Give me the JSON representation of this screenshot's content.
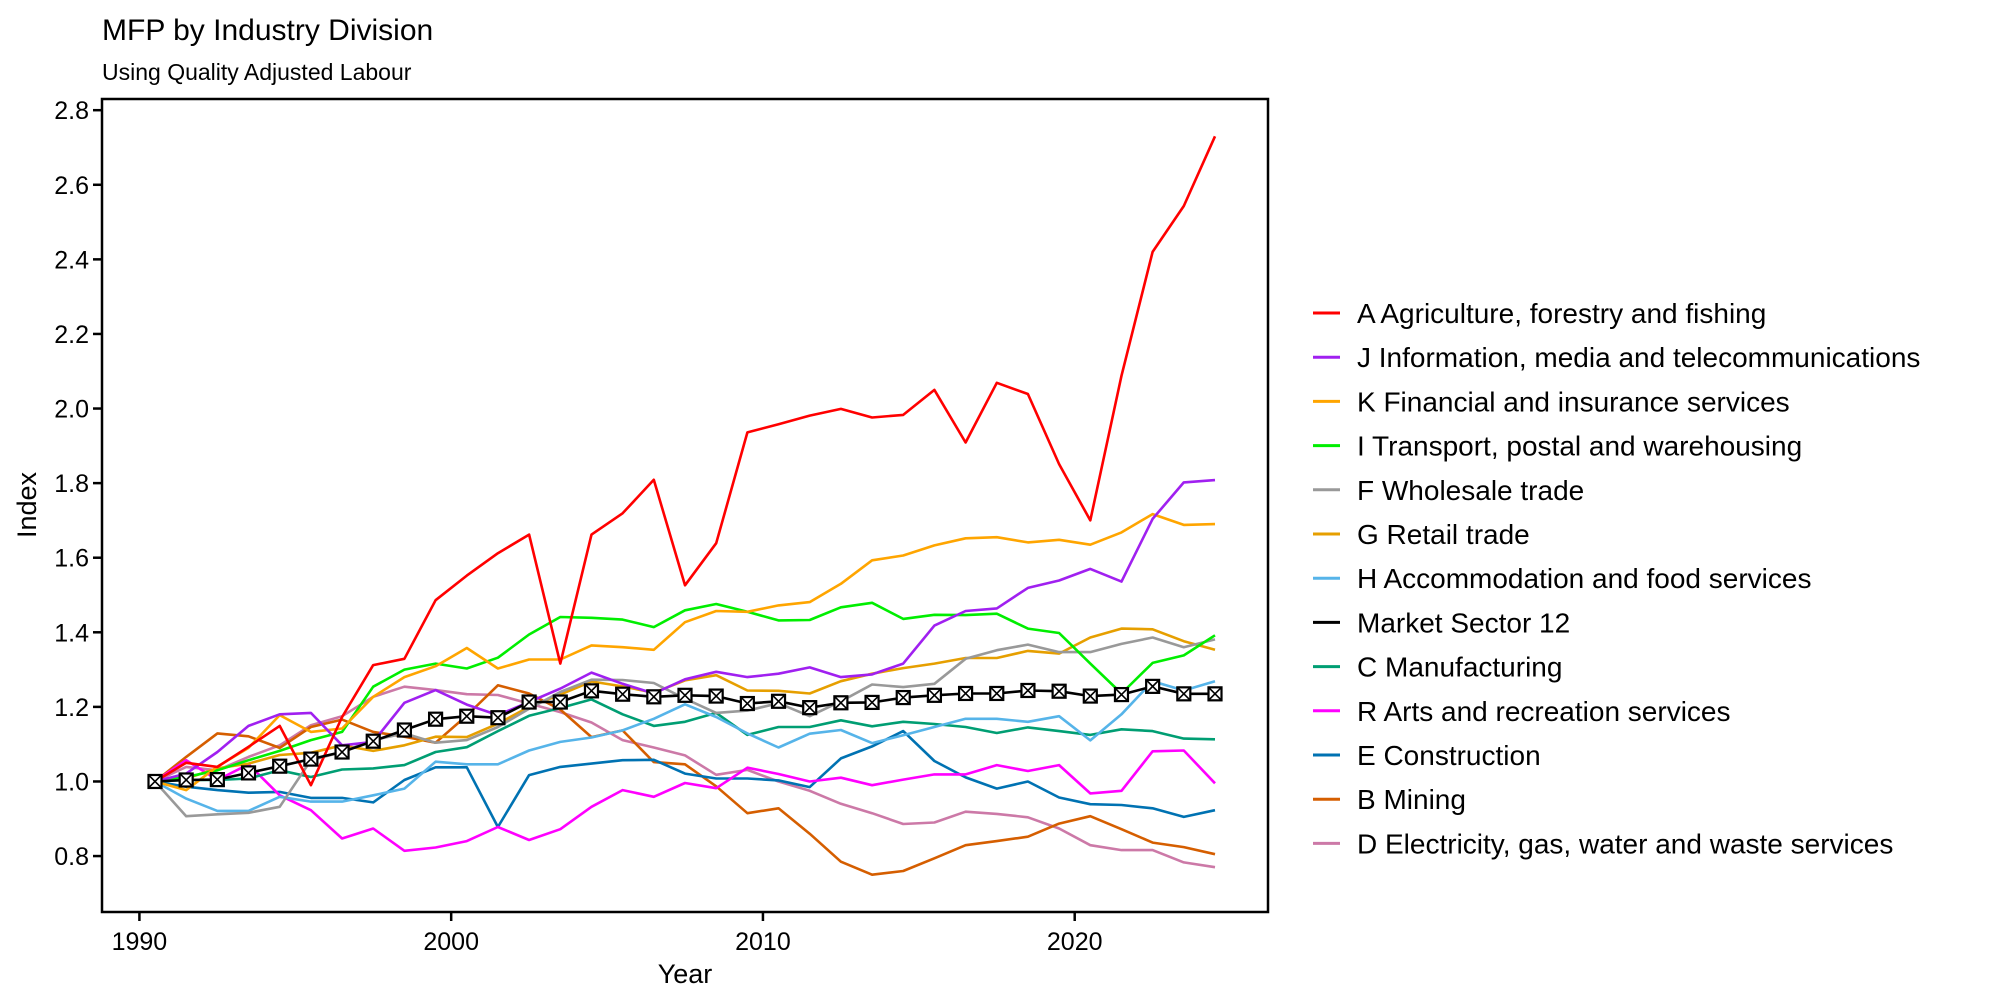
{
  "chart_data": {
    "type": "line",
    "title": "MFP by Industry Division",
    "subtitle": "Using Quality Adjusted Labour",
    "xlabel": "Year",
    "ylabel": "Index",
    "xlim": [
      1988.8,
      2026.2
    ],
    "ylim": [
      0.65,
      2.83
    ],
    "xticks": [
      1990,
      2000,
      2010,
      2020
    ],
    "xtick_labels": [
      "1990",
      "2000",
      "2010",
      "2020"
    ],
    "yticks": [
      0.8,
      1.0,
      1.2,
      1.4,
      1.6,
      1.8,
      2.0,
      2.2,
      2.4,
      2.6,
      2.8
    ],
    "ytick_labels": [
      "0.8",
      "1.0",
      "1.2",
      "1.4",
      "1.6",
      "1.8",
      "2.0",
      "2.2",
      "2.4",
      "2.6",
      "2.8"
    ],
    "grid": false,
    "legend_position": "right",
    "x": [
      1990.5,
      1991.5,
      1992.5,
      1993.5,
      1994.5,
      1995.5,
      1996.5,
      1997.5,
      1998.5,
      1999.5,
      2000.5,
      2001.5,
      2002.5,
      2003.5,
      2004.5,
      2005.5,
      2006.5,
      2007.5,
      2008.5,
      2009.5,
      2010.5,
      2011.5,
      2012.5,
      2013.5,
      2014.5,
      2015.5,
      2016.5,
      2017.5,
      2018.5,
      2019.5,
      2020.5,
      2021.5,
      2022.5,
      2023.5,
      2024.5
    ],
    "series": [
      {
        "name": "A Agriculture, forestry and fishing",
        "color": "#FF0000",
        "markers": false,
        "values": [
          1.0,
          1.05,
          1.039,
          1.093,
          1.149,
          0.99,
          1.173,
          1.312,
          1.329,
          1.486,
          1.552,
          1.612,
          1.662,
          1.316,
          1.662,
          1.719,
          1.809,
          1.526,
          1.639,
          1.936,
          1.958,
          1.981,
          1.999,
          1.976,
          1.983,
          2.05,
          1.909,
          2.069,
          2.039,
          1.851,
          1.7,
          2.088,
          2.42,
          2.543,
          2.73
        ]
      },
      {
        "name": "J Information, media and telecommunications",
        "color": "#A020F0",
        "markers": false,
        "values": [
          1.0,
          1.021,
          1.079,
          1.149,
          1.18,
          1.184,
          1.097,
          1.106,
          1.211,
          1.245,
          1.206,
          1.178,
          1.213,
          1.249,
          1.292,
          1.262,
          1.236,
          1.274,
          1.294,
          1.28,
          1.289,
          1.306,
          1.28,
          1.287,
          1.316,
          1.418,
          1.457,
          1.464,
          1.519,
          1.539,
          1.57,
          1.536,
          1.704,
          1.802,
          1.808
        ]
      },
      {
        "name": "K Financial and insurance services",
        "color": "#FFA500",
        "markers": false,
        "values": [
          1.0,
          0.977,
          1.04,
          1.09,
          1.178,
          1.133,
          1.142,
          1.227,
          1.28,
          1.309,
          1.358,
          1.303,
          1.327,
          1.327,
          1.365,
          1.36,
          1.353,
          1.427,
          1.457,
          1.455,
          1.472,
          1.481,
          1.53,
          1.593,
          1.606,
          1.633,
          1.652,
          1.655,
          1.641,
          1.648,
          1.635,
          1.668,
          1.717,
          1.688,
          1.69
        ]
      },
      {
        "name": "I Transport, postal and warehousing",
        "color": "#00EE00",
        "markers": false,
        "values": [
          1.0,
          1.012,
          1.03,
          1.057,
          1.082,
          1.111,
          1.133,
          1.254,
          1.3,
          1.316,
          1.303,
          1.332,
          1.394,
          1.441,
          1.439,
          1.434,
          1.414,
          1.459,
          1.476,
          1.455,
          1.432,
          1.433,
          1.467,
          1.479,
          1.436,
          1.447,
          1.446,
          1.45,
          1.41,
          1.398,
          1.316,
          1.236,
          1.318,
          1.338,
          1.392
        ]
      },
      {
        "name": "F Wholesale trade",
        "color": "#999999",
        "markers": false,
        "values": [
          1.0,
          0.907,
          0.912,
          0.916,
          0.932,
          1.057,
          1.079,
          1.111,
          1.129,
          1.104,
          1.111,
          1.146,
          1.195,
          1.24,
          1.273,
          1.272,
          1.264,
          1.222,
          1.184,
          1.19,
          1.21,
          1.175,
          1.215,
          1.26,
          1.253,
          1.262,
          1.329,
          1.352,
          1.367,
          1.347,
          1.347,
          1.369,
          1.386,
          1.36,
          1.381
        ]
      },
      {
        "name": "G Retail trade",
        "color": "#E69F00",
        "markers": false,
        "values": [
          1.0,
          1.008,
          1.035,
          1.048,
          1.071,
          1.077,
          1.097,
          1.082,
          1.097,
          1.12,
          1.119,
          1.155,
          1.2,
          1.233,
          1.268,
          1.255,
          1.238,
          1.271,
          1.285,
          1.244,
          1.243,
          1.236,
          1.269,
          1.289,
          1.304,
          1.316,
          1.331,
          1.331,
          1.35,
          1.343,
          1.386,
          1.41,
          1.408,
          1.376,
          1.353
        ]
      },
      {
        "name": "H Accommodation and food services",
        "color": "#56B4E9",
        "markers": false,
        "values": [
          1.0,
          0.954,
          0.921,
          0.921,
          0.959,
          0.946,
          0.946,
          0.963,
          0.981,
          1.053,
          1.046,
          1.046,
          1.083,
          1.106,
          1.118,
          1.137,
          1.168,
          1.207,
          1.173,
          1.129,
          1.091,
          1.128,
          1.138,
          1.103,
          1.124,
          1.146,
          1.168,
          1.168,
          1.16,
          1.175,
          1.11,
          1.18,
          1.269,
          1.244,
          1.269
        ]
      },
      {
        "name": "Market Sector 12",
        "color": "#000000",
        "markers": true,
        "values": [
          1.0,
          1.004,
          1.005,
          1.023,
          1.041,
          1.06,
          1.079,
          1.108,
          1.138,
          1.167,
          1.175,
          1.171,
          1.213,
          1.213,
          1.243,
          1.234,
          1.227,
          1.231,
          1.229,
          1.209,
          1.215,
          1.198,
          1.211,
          1.212,
          1.225,
          1.231,
          1.236,
          1.236,
          1.244,
          1.242,
          1.229,
          1.233,
          1.255,
          1.235,
          1.235
        ]
      },
      {
        "name": "C Manufacturing",
        "color": "#009E73",
        "markers": false,
        "values": [
          1.0,
          1.004,
          1.004,
          1.008,
          1.03,
          1.012,
          1.032,
          1.035,
          1.044,
          1.079,
          1.092,
          1.135,
          1.176,
          1.197,
          1.22,
          1.18,
          1.149,
          1.16,
          1.184,
          1.125,
          1.146,
          1.146,
          1.164,
          1.148,
          1.16,
          1.154,
          1.146,
          1.13,
          1.145,
          1.135,
          1.125,
          1.14,
          1.135,
          1.115,
          1.113
        ]
      },
      {
        "name": "R Arts and recreation services",
        "color": "#FF00FF",
        "markers": false,
        "values": [
          1.0,
          1.057,
          1.004,
          1.046,
          0.963,
          0.923,
          0.847,
          0.874,
          0.814,
          0.823,
          0.84,
          0.878,
          0.843,
          0.872,
          0.932,
          0.977,
          0.959,
          0.996,
          0.982,
          1.037,
          1.02,
          1.0,
          1.01,
          0.99,
          1.005,
          1.019,
          1.019,
          1.044,
          1.028,
          1.044,
          0.968,
          0.975,
          1.081,
          1.083,
          0.995
        ]
      },
      {
        "name": "E Construction",
        "color": "#0072B2",
        "markers": false,
        "values": [
          1.0,
          0.986,
          0.977,
          0.97,
          0.972,
          0.956,
          0.956,
          0.944,
          1.004,
          1.038,
          1.038,
          0.878,
          1.017,
          1.039,
          1.048,
          1.057,
          1.058,
          1.021,
          1.008,
          1.008,
          1.003,
          0.985,
          1.062,
          1.094,
          1.135,
          1.055,
          1.011,
          0.981,
          1.0,
          0.957,
          0.939,
          0.937,
          0.928,
          0.905,
          0.923
        ]
      },
      {
        "name": "B Mining",
        "color": "#D55E00",
        "markers": false,
        "values": [
          1.0,
          1.066,
          1.129,
          1.121,
          1.09,
          1.146,
          1.166,
          1.133,
          1.12,
          1.104,
          1.177,
          1.258,
          1.236,
          1.193,
          1.119,
          1.137,
          1.052,
          1.046,
          0.987,
          0.915,
          0.928,
          0.86,
          0.785,
          0.75,
          0.76,
          0.794,
          0.829,
          0.84,
          0.852,
          0.887,
          0.907,
          0.872,
          0.836,
          0.824,
          0.805
        ]
      },
      {
        "name": "D Electricity, gas, water and waste services",
        "color": "#CC79A7",
        "markers": false,
        "values": [
          1.0,
          1.039,
          1.03,
          1.066,
          1.097,
          1.151,
          1.175,
          1.227,
          1.254,
          1.245,
          1.234,
          1.232,
          1.209,
          1.186,
          1.158,
          1.111,
          1.091,
          1.07,
          1.018,
          1.031,
          1.0,
          0.975,
          0.94,
          0.915,
          0.886,
          0.89,
          0.919,
          0.913,
          0.904,
          0.874,
          0.829,
          0.816,
          0.816,
          0.783,
          0.77
        ]
      }
    ]
  }
}
